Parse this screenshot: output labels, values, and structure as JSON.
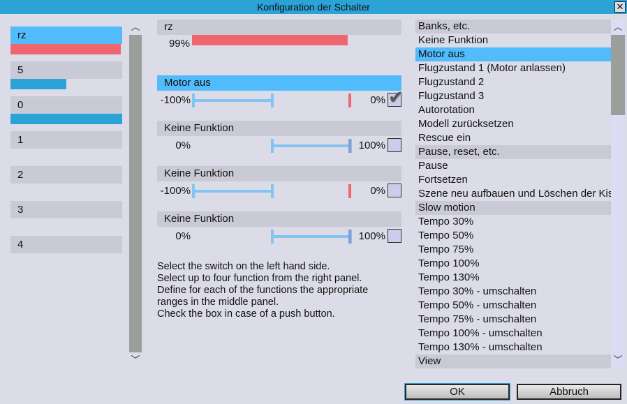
{
  "window": {
    "title": "Konfiguration der Schalter",
    "close_icon": "close-icon"
  },
  "colors": {
    "accent": "#2ca3d6",
    "selected": "#52bbfb",
    "value_red": "#f0666e",
    "header_gray": "#cacad6"
  },
  "switches": [
    {
      "label": "rz",
      "selected": true,
      "bar_fraction": 0.99,
      "bar_color": "#f0666e"
    },
    {
      "label": "5",
      "bar_fraction": 0.5,
      "bar_color": "#2ca3d6"
    },
    {
      "label": "0",
      "bar_fraction": 1.0,
      "bar_color": "#2ca3d6"
    },
    {
      "label": "1"
    },
    {
      "label": "2"
    },
    {
      "label": "3"
    },
    {
      "label": "4"
    }
  ],
  "current": {
    "name": "rz",
    "value_label": "99%",
    "value": 99
  },
  "functions": [
    {
      "label": "Keine Funktion",
      "name": "Motor aus",
      "selected": true,
      "min_label": "-100%",
      "max_label": "0%",
      "min": -100,
      "max": 0,
      "push_button": true
    },
    {
      "name": "Keine Funktion",
      "min_label": "0%",
      "max_label": "100%",
      "min": 0,
      "max": 100,
      "push_button": false
    },
    {
      "name": "Keine Funktion",
      "min_label": "-100%",
      "max_label": "0%",
      "min": -100,
      "max": 0,
      "push_button": false
    },
    {
      "name": "Keine Funktion",
      "min_label": "0%",
      "max_label": "100%",
      "min": 0,
      "max": 100,
      "push_button": false
    }
  ],
  "help": [
    "Select the switch on the left hand side.",
    "Select up to four function from the right panel.",
    "Define for each of the functions the appropriate",
    "ranges in the middle panel.",
    "Check the box in case of a push button."
  ],
  "function_list": [
    {
      "label": "Banks, etc.",
      "group": true
    },
    {
      "label": "Keine Funktion"
    },
    {
      "label": "Motor aus",
      "selected": true
    },
    {
      "label": "Flugzustand 1 (Motor anlassen)"
    },
    {
      "label": "Flugzustand 2"
    },
    {
      "label": "Flugzustand 3"
    },
    {
      "label": "Autorotation"
    },
    {
      "label": "Modell zurücksetzen"
    },
    {
      "label": "Rescue ein"
    },
    {
      "label": "Pause, reset, etc.",
      "group": true
    },
    {
      "label": "Pause"
    },
    {
      "label": "Fortsetzen"
    },
    {
      "label": "Szene neu aufbauen und Löschen der Kisten"
    },
    {
      "label": "Slow motion",
      "group": true
    },
    {
      "label": "Tempo 30%"
    },
    {
      "label": "Tempo 50%"
    },
    {
      "label": "Tempo 75%"
    },
    {
      "label": "Tempo 100%"
    },
    {
      "label": "Tempo 130%"
    },
    {
      "label": "Tempo 30% - umschalten"
    },
    {
      "label": "Tempo 50% - umschalten"
    },
    {
      "label": "Tempo 75% - umschalten"
    },
    {
      "label": "Tempo 100% - umschalten"
    },
    {
      "label": "Tempo 130% - umschalten"
    },
    {
      "label": "View",
      "group": true
    }
  ],
  "buttons": {
    "ok": "OK",
    "cancel": "Abbruch"
  }
}
